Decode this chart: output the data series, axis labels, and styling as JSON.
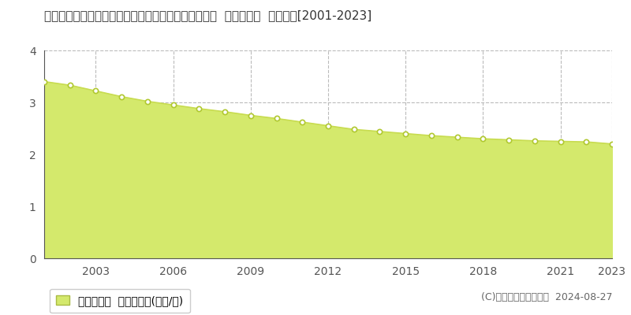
{
  "title": "福島県東白川郡鮫川村大字赤坂中野字道少田１８番１  基準地価格  地価推移[2001-2023]",
  "years": [
    2001,
    2002,
    2003,
    2004,
    2005,
    2006,
    2007,
    2008,
    2009,
    2010,
    2011,
    2012,
    2013,
    2014,
    2015,
    2016,
    2017,
    2018,
    2019,
    2020,
    2021,
    2022,
    2023
  ],
  "values": [
    3.4,
    3.33,
    3.22,
    3.11,
    3.02,
    2.95,
    2.88,
    2.82,
    2.75,
    2.69,
    2.62,
    2.55,
    2.48,
    2.44,
    2.4,
    2.36,
    2.33,
    2.3,
    2.28,
    2.26,
    2.25,
    2.24,
    2.2
  ],
  "fill_color": "#d4e96c",
  "line_color": "#c8dc50",
  "marker_facecolor": "#ffffff",
  "marker_edgecolor": "#b0c830",
  "background_color": "#ffffff",
  "ylim": [
    0,
    4
  ],
  "yticks": [
    0,
    1,
    2,
    3,
    4
  ],
  "xticks": [
    2003,
    2006,
    2009,
    2012,
    2015,
    2018,
    2021,
    2023
  ],
  "legend_label": "基準地価格  平均坪単価(万円/坪)",
  "copyright_text": "(C)土地価格ドットコム  2024-08-27",
  "grid_color": "#bbbbbb",
  "vgrid_color": "#bbbbbb",
  "title_fontsize": 11,
  "axis_fontsize": 10,
  "legend_fontsize": 10,
  "copyright_fontsize": 9
}
